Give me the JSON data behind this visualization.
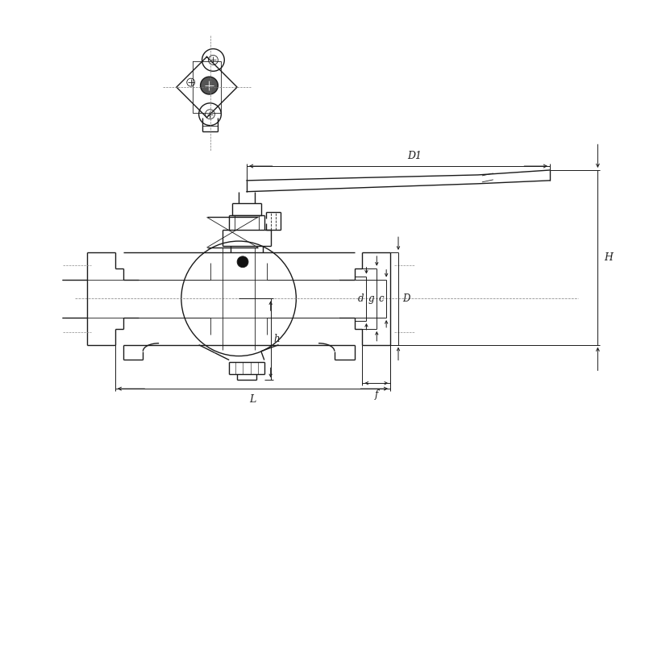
{
  "bg_color": "#ffffff",
  "line_color": "#1a1a1a",
  "dim_color": "#1a1a1a",
  "figsize": [
    8.0,
    8.0
  ],
  "dpi": 100,
  "labels": {
    "D1": "D1",
    "H": "H",
    "d": "d",
    "g": "g",
    "c": "c",
    "D": "D",
    "h": "h",
    "f": "f",
    "L": "L"
  }
}
